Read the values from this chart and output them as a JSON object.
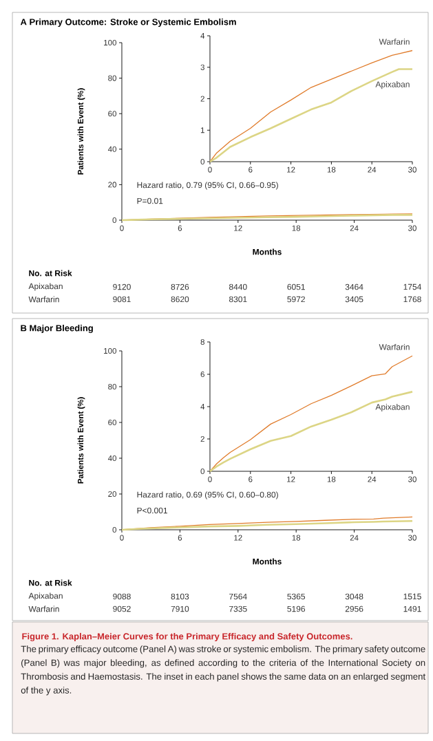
{
  "chart_data": [
    {
      "type": "line",
      "title": "A  Primary Outcome: Stroke or Systemic Embolism",
      "xlabel": "Months",
      "ylabel": "Patients with Event (%)",
      "x": [
        0,
        1,
        3,
        6,
        9,
        12,
        15,
        18,
        21,
        24,
        27,
        28,
        30
      ],
      "xlim": [
        0,
        30
      ],
      "xticks": [
        0,
        6,
        12,
        18,
        24,
        30
      ],
      "ylim": [
        0,
        100
      ],
      "yticks": [
        0,
        20,
        40,
        60,
        80,
        100
      ],
      "series": [
        {
          "color": "#e07b2a",
          "values": [
            0,
            0.28,
            0.65,
            1.06,
            1.58,
            1.96,
            2.36,
            2.62,
            2.88,
            3.14,
            3.38,
            3.43,
            3.53
          ]
        },
        {
          "color": "#dcd585",
          "values": [
            0,
            0.13,
            0.47,
            0.78,
            1.06,
            1.36,
            1.66,
            1.88,
            2.25,
            2.56,
            2.85,
            2.94,
            2.94
          ]
        }
      ],
      "annotations": [
        "Hazard ratio, 0.79 (95% CI, 0.66–0.95)",
        "P=0.01",
        "No. at Risk",
        "Apixaban",
        "9120",
        "8726",
        "8440",
        "6051",
        "3464",
        "1754",
        "Warfarin",
        "9081",
        "8620",
        "8301",
        "5972",
        "3405",
        "1768"
      ]
    },
    {
      "type": "line",
      "x": [
        0,
        1,
        3,
        6,
        9,
        12,
        15,
        18,
        21,
        24,
        27,
        28,
        30
      ],
      "xlim": [
        0,
        30
      ],
      "xticks": [
        0,
        6,
        12,
        18,
        24,
        30
      ],
      "ylim": [
        0,
        4
      ],
      "yticks": [
        0,
        1,
        2,
        3,
        4
      ],
      "series": [
        {
          "name": "Warfarin",
          "color": "#e07b2a",
          "values": [
            0,
            0.28,
            0.65,
            1.06,
            1.58,
            1.96,
            2.36,
            2.62,
            2.88,
            3.14,
            3.38,
            3.43,
            3.53
          ]
        },
        {
          "name": "Apixaban",
          "color": "#dcd585",
          "values": [
            0,
            0.13,
            0.47,
            0.78,
            1.06,
            1.36,
            1.66,
            1.88,
            2.25,
            2.56,
            2.85,
            2.94,
            2.94
          ]
        }
      ]
    },
    {
      "type": "line",
      "title": "B  Major Bleeding",
      "xlabel": "Months",
      "ylabel": "Patients with Event (%)",
      "x": [
        0,
        1,
        2,
        3,
        6,
        9,
        12,
        15,
        18,
        21,
        24,
        26,
        27,
        30
      ],
      "xlim": [
        0,
        30
      ],
      "xticks": [
        0,
        6,
        12,
        18,
        24,
        30
      ],
      "ylim": [
        0,
        100
      ],
      "yticks": [
        0,
        20,
        40,
        60,
        80,
        100
      ],
      "series": [
        {
          "color": "#e07b2a",
          "values": [
            0,
            0.47,
            0.84,
            1.17,
            1.96,
            2.92,
            3.51,
            4.18,
            4.7,
            5.29,
            5.91,
            6.03,
            6.47,
            7.14
          ]
        },
        {
          "color": "#dcd585",
          "values": [
            0,
            0.3,
            0.55,
            0.77,
            1.36,
            1.88,
            2.18,
            2.77,
            3.19,
            3.66,
            4.25,
            4.45,
            4.62,
            4.92
          ]
        }
      ],
      "annotations": [
        "Hazard ratio, 0.69 (95% CI, 0.60–0.80)",
        "P<0.001",
        "No. at Risk",
        "Apixaban",
        "9088",
        "8103",
        "7564",
        "5365",
        "3048",
        "1515",
        "Warfarin",
        "9052",
        "7910",
        "7335",
        "5196",
        "2956",
        "1491",
        "Figure 1. Kaplan–Meier Curves for the Primary Efficacy and Safety Outcomes.",
        "The primary efficacy outcome (Panel A) was stroke or systemic embolism. The primary safety outcome (Panel B) was major bleeding, as defined according to the criteria of the International Society on Thrombosis and Haemostasis. The inset in each panel shows the same data on an enlarged segment of the y axis."
      ]
    },
    {
      "type": "line",
      "x": [
        0,
        1,
        2,
        3,
        6,
        9,
        12,
        15,
        18,
        21,
        24,
        26,
        27,
        30
      ],
      "xlim": [
        0,
        30
      ],
      "xticks": [
        0,
        6,
        12,
        18,
        24,
        30
      ],
      "ylim": [
        0,
        8
      ],
      "yticks": [
        0,
        2,
        4,
        6,
        8
      ],
      "series": [
        {
          "name": "Warfarin",
          "color": "#e07b2a",
          "values": [
            0,
            0.47,
            0.84,
            1.17,
            1.96,
            2.92,
            3.51,
            4.18,
            4.7,
            5.29,
            5.91,
            6.03,
            6.47,
            7.14
          ]
        },
        {
          "name": "Apixaban",
          "color": "#dcd585",
          "values": [
            0,
            0.3,
            0.55,
            0.77,
            1.36,
            1.88,
            2.18,
            2.77,
            3.19,
            3.66,
            4.25,
            4.45,
            4.62,
            4.92
          ]
        }
      ]
    }
  ]
}
